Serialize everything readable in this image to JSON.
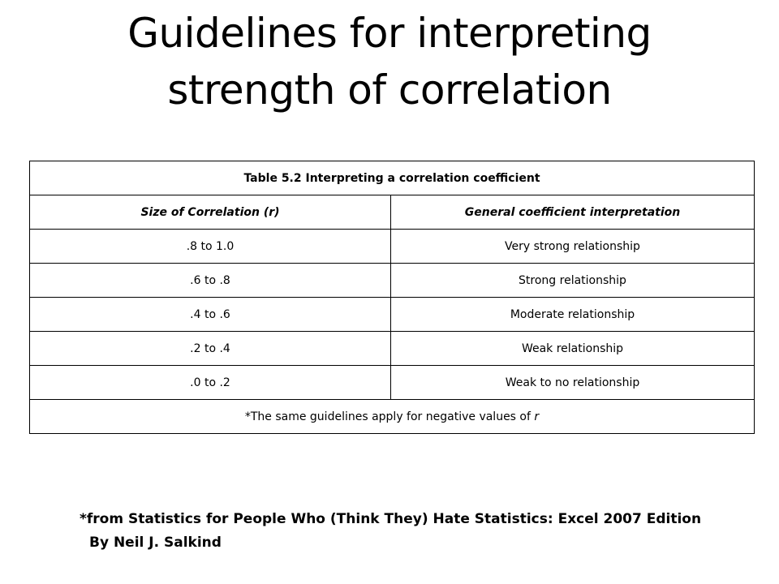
{
  "title": {
    "line1": "Guidelines for interpreting",
    "line2": "strength of correlation"
  },
  "table": {
    "caption": "Table 5.2 Interpreting a correlation coefficient",
    "headers": {
      "size_prefix": "Size of Correlation (",
      "size_var": "r",
      "size_suffix": ")",
      "interpretation": "General coefficient interpretation"
    },
    "rows": [
      {
        "range": ".8 to 1.0",
        "meaning": "Very strong relationship"
      },
      {
        "range": ".6 to .8",
        "meaning": "Strong relationship"
      },
      {
        "range": ".4 to .6",
        "meaning": "Moderate relationship"
      },
      {
        "range": ".2 to .4",
        "meaning": "Weak relationship"
      },
      {
        "range": ".0 to .2",
        "meaning": "Weak to no relationship"
      }
    ],
    "footnote_text": "*The same guidelines apply for negative values of ",
    "footnote_var": "r"
  },
  "source": {
    "line1": "*from Statistics for People Who (Think They) Hate Statistics: Excel 2007 Edition",
    "line2": "By Neil J. Salkind"
  }
}
